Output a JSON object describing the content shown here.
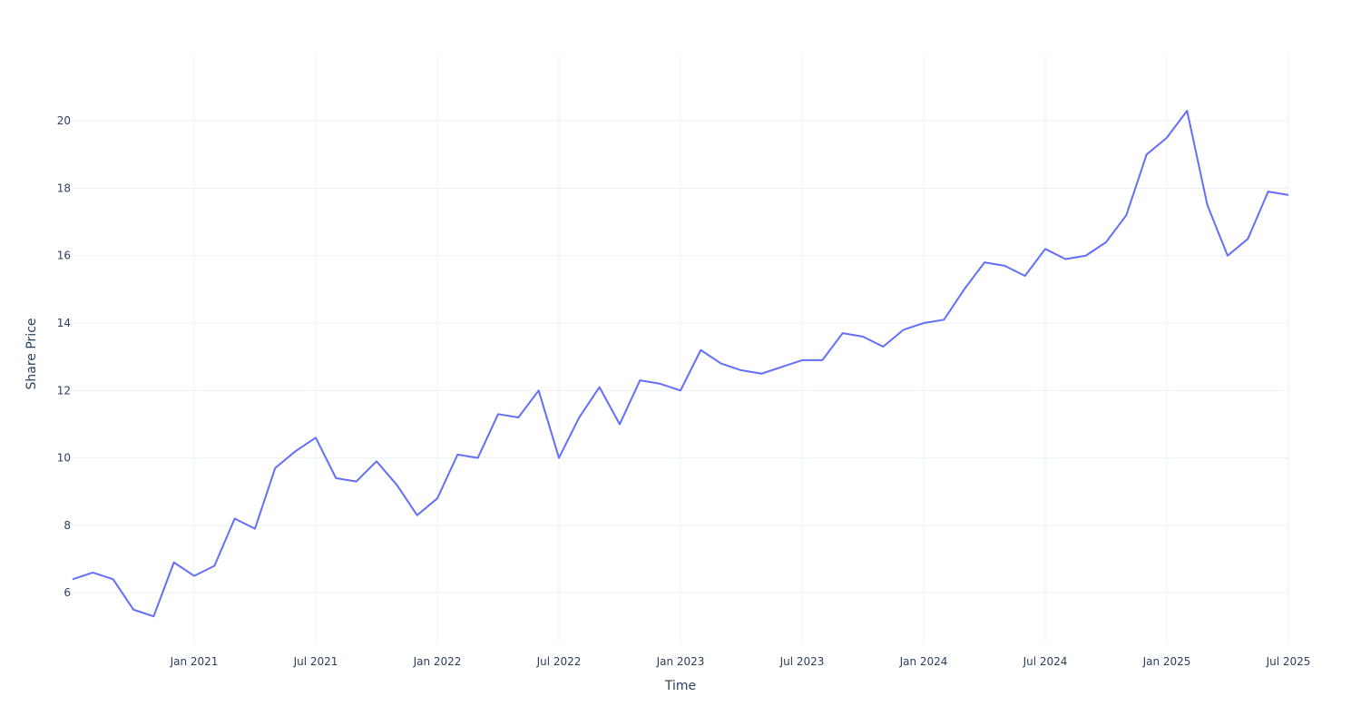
{
  "chart_data": {
    "type": "line",
    "x_label": "Time",
    "y_label": "Share Price",
    "x": [
      "2020-07",
      "2020-08",
      "2020-09",
      "2020-10",
      "2020-11",
      "2020-12",
      "2021-01",
      "2021-02",
      "2021-03",
      "2021-04",
      "2021-05",
      "2021-06",
      "2021-07",
      "2021-08",
      "2021-09",
      "2021-10",
      "2021-11",
      "2021-12",
      "2022-01",
      "2022-02",
      "2022-03",
      "2022-04",
      "2022-05",
      "2022-06",
      "2022-07",
      "2022-08",
      "2022-09",
      "2022-10",
      "2022-11",
      "2022-12",
      "2023-01",
      "2023-02",
      "2023-03",
      "2023-04",
      "2023-05",
      "2023-06",
      "2023-07",
      "2023-08",
      "2023-09",
      "2023-10",
      "2023-11",
      "2023-12",
      "2024-01",
      "2024-02",
      "2024-03",
      "2024-04",
      "2024-05",
      "2024-06",
      "2024-07",
      "2024-08",
      "2024-09",
      "2024-10",
      "2024-11",
      "2024-12",
      "2025-01",
      "2025-02",
      "2025-03",
      "2025-04",
      "2025-05",
      "2025-06",
      "2025-07"
    ],
    "series": [
      {
        "color": "#636efa",
        "values": [
          6.4,
          6.6,
          6.4,
          5.5,
          5.3,
          6.9,
          6.5,
          6.8,
          8.2,
          7.9,
          9.7,
          10.2,
          10.6,
          9.4,
          9.3,
          9.9,
          9.2,
          8.3,
          8.8,
          10.1,
          10.0,
          11.3,
          11.2,
          12.0,
          10.0,
          11.2,
          12.1,
          11.0,
          12.3,
          12.2,
          12.0,
          13.2,
          12.8,
          12.6,
          12.5,
          12.7,
          12.9,
          12.9,
          13.7,
          13.6,
          13.3,
          13.8,
          14.0,
          14.1,
          15.0,
          15.8,
          15.7,
          15.4,
          16.2,
          15.9,
          16.0,
          16.4,
          17.2,
          19.0,
          19.5,
          20.3,
          17.5,
          16.0,
          16.5,
          17.9,
          17.8
        ]
      }
    ],
    "xlim": [
      "2020-07",
      "2025-07"
    ],
    "xticks": [
      {
        "value": "2021-01",
        "label": "Jan 2021"
      },
      {
        "value": "2021-07",
        "label": "Jul 2021"
      },
      {
        "value": "2022-01",
        "label": "Jan 2022"
      },
      {
        "value": "2022-07",
        "label": "Jul 2022"
      },
      {
        "value": "2023-01",
        "label": "Jan 2023"
      },
      {
        "value": "2023-07",
        "label": "Jul 2023"
      },
      {
        "value": "2024-01",
        "label": "Jan 2024"
      },
      {
        "value": "2024-07",
        "label": "Jul 2024"
      },
      {
        "value": "2025-01",
        "label": "Jan 2025"
      },
      {
        "value": "2025-07",
        "label": "Jul 2025"
      }
    ],
    "ylim": [
      4.47,
      21.97
    ],
    "yticks": [
      6,
      8,
      10,
      12,
      14,
      16,
      18,
      20
    ],
    "grid": true
  }
}
